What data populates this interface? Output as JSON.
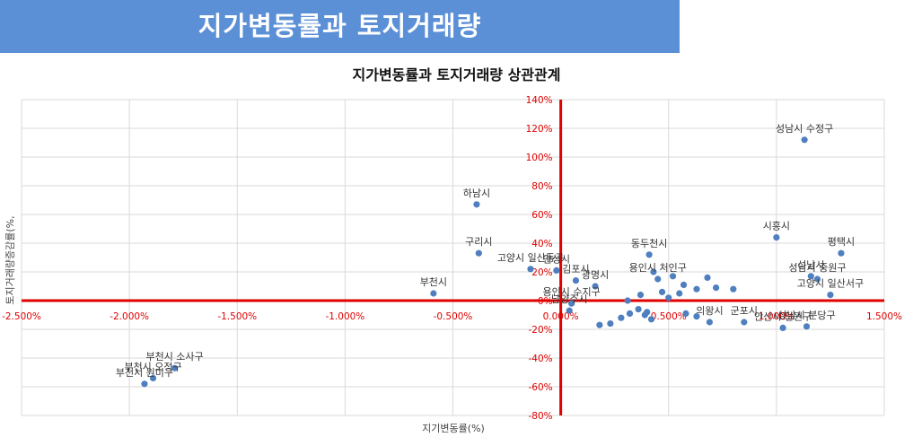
{
  "banner": {
    "title": "지가변동률과 토지거래량"
  },
  "colors": {
    "banner": "#5b8fd6",
    "points": "#4f7fbf",
    "axes": "#e00000",
    "grid": "#d9d9d9",
    "label": "#333333"
  },
  "chart_data": {
    "type": "scatter",
    "title": "지가변동률과 토지거래량 상관관계",
    "xlabel": "지기변동률(%)",
    "ylabel": "토지거래량증감률(%,",
    "xlim": [
      -2.5,
      1.5
    ],
    "ylim": [
      -80,
      140
    ],
    "x_ticks": [
      "-2.500%",
      "-2.000%",
      "-1.500%",
      "-1.000%",
      "-0.500%",
      "0.000%",
      "0.500%",
      "1.000%",
      "1.500%"
    ],
    "y_ticks": [
      "-80%",
      "-60%",
      "-40%",
      "-20%",
      "0%",
      "20%",
      "40%",
      "60%",
      "80%",
      "100%",
      "120%",
      "140%"
    ],
    "grid": true,
    "points": [
      {
        "label": "성남시 수정구",
        "x": 1.13,
        "y": 112
      },
      {
        "label": "하남시",
        "x": -0.39,
        "y": 67
      },
      {
        "label": "시흥시",
        "x": 1.0,
        "y": 44
      },
      {
        "label": "평택시",
        "x": 1.3,
        "y": 33
      },
      {
        "label": "구리시",
        "x": -0.38,
        "y": 33
      },
      {
        "label": "동두천시",
        "x": 0.41,
        "y": 32
      },
      {
        "label": "고양시 일산동구",
        "x": -0.14,
        "y": 22
      },
      {
        "label": "안성시",
        "x": -0.02,
        "y": 21
      },
      {
        "label": "김포시",
        "x": 0.07,
        "y": 14
      },
      {
        "label": "광명시",
        "x": 0.16,
        "y": 10
      },
      {
        "label": "부천시",
        "x": -0.59,
        "y": 5
      },
      {
        "label": "용인시 처인구",
        "x": 0.45,
        "y": 15
      },
      {
        "label": "성남시",
        "x": 1.16,
        "y": 17
      },
      {
        "label": "성남시 중원구",
        "x": 1.19,
        "y": 15
      },
      {
        "label": "고양시 일산서구",
        "x": 1.25,
        "y": 4
      },
      {
        "label": "용인시 수지구",
        "x": 0.05,
        "y": -2
      },
      {
        "label": "남양주시",
        "x": 0.04,
        "y": -7
      },
      {
        "label": "의왕시",
        "x": 0.69,
        "y": -15
      },
      {
        "label": "군포시",
        "x": 0.85,
        "y": -15
      },
      {
        "label": "안산시 단원구",
        "x": 1.03,
        "y": -19
      },
      {
        "label": "성남시 분당구",
        "x": 1.14,
        "y": -18
      },
      {
        "label": "부천시 소사구",
        "x": -1.79,
        "y": -47
      },
      {
        "label": "부천시 오정구",
        "x": -1.89,
        "y": -54
      },
      {
        "label": "부천시 원미구",
        "x": -1.93,
        "y": -58
      },
      {
        "label": "",
        "x": 0.43,
        "y": 20
      },
      {
        "label": "",
        "x": 0.52,
        "y": 17
      },
      {
        "label": "",
        "x": 0.57,
        "y": 11
      },
      {
        "label": "",
        "x": 0.63,
        "y": 8
      },
      {
        "label": "",
        "x": 0.55,
        "y": 5
      },
      {
        "label": "",
        "x": 0.68,
        "y": 16
      },
      {
        "label": "",
        "x": 0.72,
        "y": 9
      },
      {
        "label": "",
        "x": 0.8,
        "y": 8
      },
      {
        "label": "",
        "x": 0.37,
        "y": 4
      },
      {
        "label": "",
        "x": 0.47,
        "y": 6
      },
      {
        "label": "",
        "x": 0.5,
        "y": 2
      },
      {
        "label": "",
        "x": 0.31,
        "y": 0
      },
      {
        "label": "",
        "x": 0.36,
        "y": -6
      },
      {
        "label": "",
        "x": 0.39,
        "y": -10
      },
      {
        "label": "",
        "x": 0.28,
        "y": -12
      },
      {
        "label": "",
        "x": 0.42,
        "y": -13
      },
      {
        "label": "",
        "x": 0.23,
        "y": -16
      },
      {
        "label": "",
        "x": 0.58,
        "y": -9
      },
      {
        "label": "",
        "x": 0.63,
        "y": -11
      },
      {
        "label": "",
        "x": 0.32,
        "y": -9
      },
      {
        "label": "",
        "x": 0.18,
        "y": -17
      },
      {
        "label": "",
        "x": 0.4,
        "y": -8
      }
    ]
  }
}
